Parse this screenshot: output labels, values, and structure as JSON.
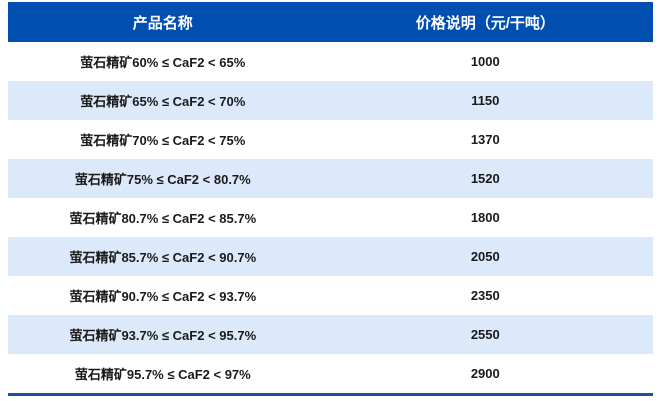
{
  "colors": {
    "header_bg": "#004fb0",
    "stripe_bg": "#dbe9fb",
    "bottom_rule": "#1d4f9f",
    "header_text": "#ffffff",
    "body_text": "#1a1a1a"
  },
  "table": {
    "header": {
      "product_label": "产品名称",
      "price_label": "价格说明（元/干吨）"
    }
  },
  "chart_data": {
    "type": "table",
    "title": "",
    "columns": [
      "产品名称",
      "价格说明（元/干吨）"
    ],
    "rows": [
      {
        "product": "萤石精矿60% ≤ CaF2 < 65%",
        "price": "1000"
      },
      {
        "product": "萤石精矿65% ≤ CaF2 < 70%",
        "price": "1150"
      },
      {
        "product": "萤石精矿70% ≤ CaF2 < 75%",
        "price": "1370"
      },
      {
        "product": "萤石精矿75% ≤ CaF2 < 80.7%",
        "price": "1520"
      },
      {
        "product": "萤石精矿80.7% ≤ CaF2 < 85.7%",
        "price": "1800"
      },
      {
        "product": "萤石精矿85.7% ≤ CaF2 < 90.7%",
        "price": "2050"
      },
      {
        "product": "萤石精矿90.7% ≤ CaF2 < 93.7%",
        "price": "2350"
      },
      {
        "product": "萤石精矿93.7% ≤ CaF2 < 95.7%",
        "price": "2550"
      },
      {
        "product": "萤石精矿95.7% ≤ CaF2 < 97%",
        "price": "2900"
      }
    ],
    "categories": [
      "萤石精矿60% ≤ CaF2 < 65%",
      "萤石精矿65% ≤ CaF2 < 70%",
      "萤石精矿70% ≤ CaF2 < 75%",
      "萤石精矿75% ≤ CaF2 < 80.7%",
      "萤石精矿80.7% ≤ CaF2 < 85.7%",
      "萤石精矿85.7% ≤ CaF2 < 90.7%",
      "萤石精矿90.7% ≤ CaF2 < 93.7%",
      "萤石精矿93.7% ≤ CaF2 < 95.7%",
      "萤石精矿95.7% ≤ CaF2 < 97%"
    ],
    "values": [
      1000,
      1150,
      1370,
      1520,
      1800,
      2050,
      2350,
      2550,
      2900
    ],
    "layout": {
      "stripe": "alternate-rows",
      "first_data_row_background": "white"
    }
  }
}
